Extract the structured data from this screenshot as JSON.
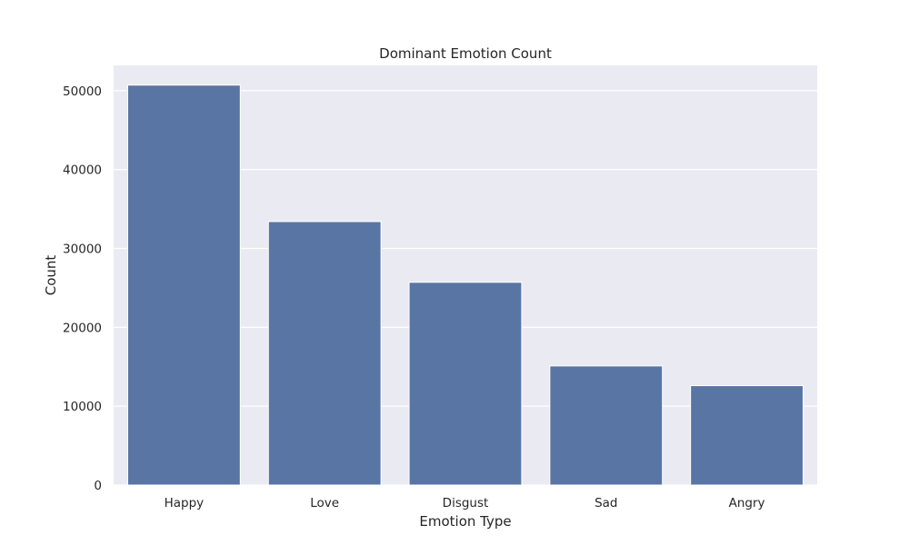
{
  "chart_data": {
    "type": "bar",
    "title": "Dominant Emotion Count",
    "xlabel": "Emotion Type",
    "ylabel": "Count",
    "categories": [
      "Happy",
      "Love",
      "Disgust",
      "Sad",
      "Angry"
    ],
    "values": [
      50700,
      33400,
      25700,
      15100,
      12600
    ],
    "ylim": [
      0,
      53200
    ],
    "yticks": [
      0,
      10000,
      20000,
      30000,
      40000,
      50000
    ],
    "grid": true,
    "colors": {
      "bar": "#5875a4",
      "plot_background": "#eaeaf2",
      "grid": "#ffffff",
      "text": "#262626"
    }
  }
}
